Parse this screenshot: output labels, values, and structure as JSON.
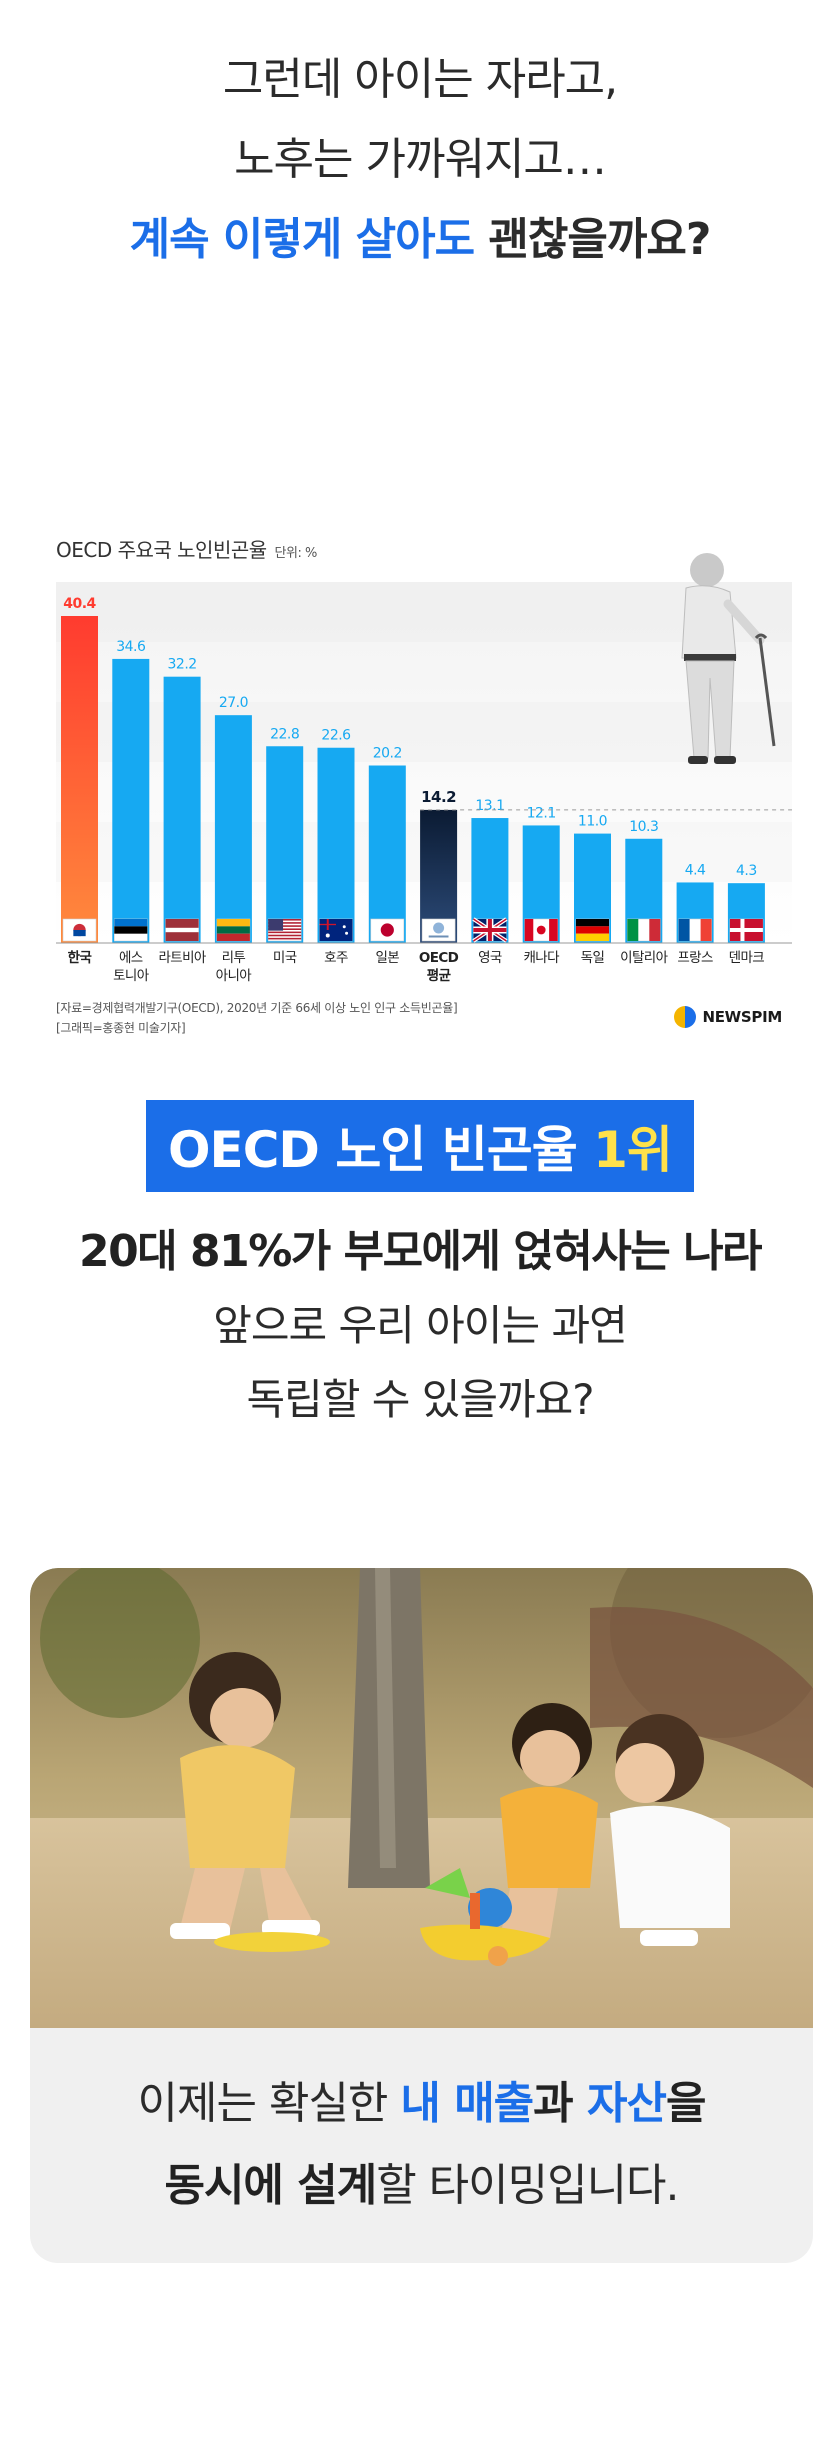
{
  "intro": {
    "line1": "그런데 아이는 자라고,",
    "line2": "노후는 가까워지고…",
    "line3_blue": "계속 이렇게 살아도",
    "line3_rest": " 괜찮을까요?"
  },
  "chart_data": {
    "type": "bar",
    "title": "OECD 주요국 노인빈곤율",
    "unit_label": "단위: %",
    "categories": [
      "한국",
      "에스토니아",
      "라트비아",
      "리투아니아",
      "미국",
      "호주",
      "일본",
      "OECD평균",
      "영국",
      "캐나다",
      "독일",
      "이탈리아",
      "프랑스",
      "덴마크"
    ],
    "category_lines": [
      [
        "한국"
      ],
      [
        "에스",
        "토니아"
      ],
      [
        "라트비아"
      ],
      [
        "리투",
        "아니아"
      ],
      [
        "미국"
      ],
      [
        "호주"
      ],
      [
        "일본"
      ],
      [
        "OECD",
        "평균"
      ],
      [
        "영국"
      ],
      [
        "캐나다"
      ],
      [
        "독일"
      ],
      [
        "이탈리아"
      ],
      [
        "프랑스"
      ],
      [
        "덴마크"
      ]
    ],
    "values": [
      40.4,
      34.6,
      32.2,
      27.0,
      22.8,
      22.6,
      20.2,
      14.2,
      13.1,
      12.1,
      11.0,
      10.3,
      4.4,
      4.3
    ],
    "value_labels": [
      "40.4",
      "34.6",
      "32.2",
      "27.0",
      "22.8",
      "22.6",
      "20.2",
      "14.2",
      "13.1",
      "12.1",
      "11.0",
      "10.3",
      "4.4",
      "4.3"
    ],
    "highlight_category": "한국",
    "average_category": "OECD평균",
    "ylim": [
      0,
      45
    ],
    "colors": {
      "bar": "#16a9f2",
      "highlight_top": "#ff3b2f",
      "highlight_bottom": "#ff8b3d",
      "average_top": "#0b1b33",
      "average_bottom": "#2d4c7a",
      "value_label": "#16a9f2",
      "highlight_label": "#ff3b2f",
      "average_label": "#0b1b33"
    },
    "flags": [
      "kr-flag-icon",
      "ee-flag-icon",
      "lv-flag-icon",
      "lt-flag-icon",
      "us-flag-icon",
      "au-flag-icon",
      "jp-flag-icon",
      "oecd-logo-icon",
      "gb-flag-icon",
      "ca-flag-icon",
      "de-flag-icon",
      "it-flag-icon",
      "fr-flag-icon",
      "dk-flag-icon"
    ]
  },
  "source": {
    "line1": "[자료=경제협력개발기구(OECD), 2020년 기준 66세 이상 노인 인구 소득빈곤율]",
    "line2": "[그래픽=홍종현 미술기자]",
    "brand": "NEWSPIM"
  },
  "rank": {
    "badge_main": "OECD 노인 빈곤율 ",
    "badge_highlight": "1위",
    "line1": "20대 81%가 부모에게 얹혀사는 나라",
    "line2": "앞으로 우리 아이는 과연",
    "line3": "독립할 수 있을까요?"
  },
  "closing": {
    "l1_a": "이제는 확실한 ",
    "l1_b": "내 매출",
    "l1_c": "과 ",
    "l1_d": "자산",
    "l1_e": "을",
    "l2_a": "동시에 설계",
    "l2_b": "할 타이밍입니다."
  }
}
